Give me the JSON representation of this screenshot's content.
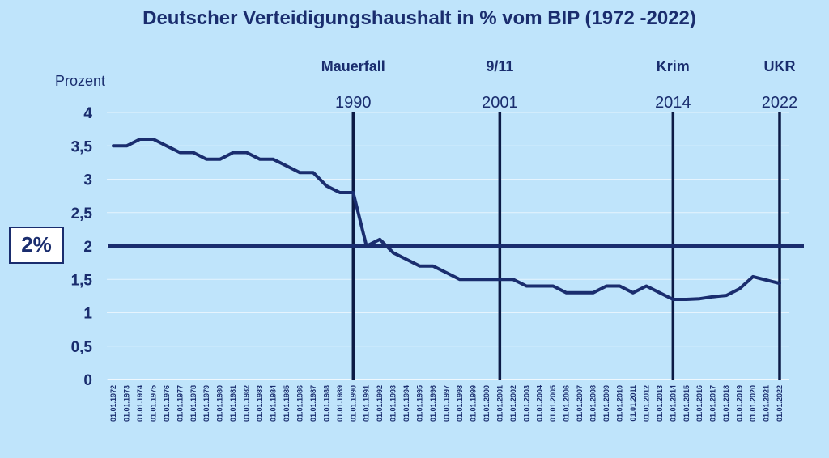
{
  "chart_data": {
    "type": "line",
    "title": "Deutscher Verteidigungshaushalt in % vom BIP (1972 -2022)",
    "ylabel": "Prozent",
    "ylim": [
      0,
      4
    ],
    "yticks": [
      "0",
      "0,5",
      "1",
      "1,5",
      "2",
      "2,5",
      "3",
      "3,5",
      "4"
    ],
    "reference_line": {
      "value": 2,
      "label": "2%"
    },
    "categories": [
      "01.01.1972",
      "01.01.1973",
      "01.01.1974",
      "01.01.1975",
      "01.01.1976",
      "01.01.1977",
      "01.01.1978",
      "01.01.1979",
      "01.01.1980",
      "01.01.1981",
      "01.01.1982",
      "01.01.1983",
      "01.01.1984",
      "01.01.1985",
      "01.01.1986",
      "01.01.1987",
      "01.01.1988",
      "01.01.1989",
      "01.01.1990",
      "01.01.1991",
      "01.01.1992",
      "01.01.1993",
      "01.01.1994",
      "01.01.1995",
      "01.01.1996",
      "01.01.1997",
      "01.01.1998",
      "01.01.1999",
      "01.01.2000",
      "01.01.2001",
      "01.01.2002",
      "01.01.2003",
      "01.01.2004",
      "01.01.2005",
      "01.01.2006",
      "01.01.2007",
      "01.01.2008",
      "01.01.2009",
      "01.01.2010",
      "01.01.2011",
      "01.01.2012",
      "01.01.2013",
      "01.01.2014",
      "01.01.2015",
      "01.01.2016",
      "01.01.2017",
      "01.01.2018",
      "01.01.2019",
      "01.01.2020",
      "01.01.2021",
      "01.01.2022"
    ],
    "series": [
      {
        "name": "Verteidigungshaushalt",
        "values": [
          3.5,
          3.5,
          3.6,
          3.6,
          3.5,
          3.4,
          3.4,
          3.3,
          3.3,
          3.4,
          3.4,
          3.3,
          3.3,
          3.2,
          3.1,
          3.1,
          2.9,
          2.8,
          2.8,
          2.0,
          2.1,
          1.9,
          1.8,
          1.7,
          1.7,
          1.6,
          1.5,
          1.5,
          1.5,
          1.5,
          1.5,
          1.4,
          1.4,
          1.4,
          1.3,
          1.3,
          1.3,
          1.4,
          1.4,
          1.3,
          1.4,
          1.3,
          1.2,
          1.2,
          1.21,
          1.24,
          1.26,
          1.36,
          1.54,
          1.49,
          1.44
        ]
      }
    ],
    "events": [
      {
        "index": 18,
        "label": "Mauerfall",
        "year": "1990"
      },
      {
        "index": 29,
        "label": "9/11",
        "year": "2001"
      },
      {
        "index": 42,
        "label": "Krim",
        "year": "2014"
      },
      {
        "index": 50,
        "label": "UKR",
        "year": "2022"
      }
    ],
    "colors": {
      "background": "#bfe4fb",
      "line": "#1a2d6e",
      "text": "#1a2d6e",
      "grid": "#e6f4fe",
      "event_line": "#0c1a45"
    }
  }
}
